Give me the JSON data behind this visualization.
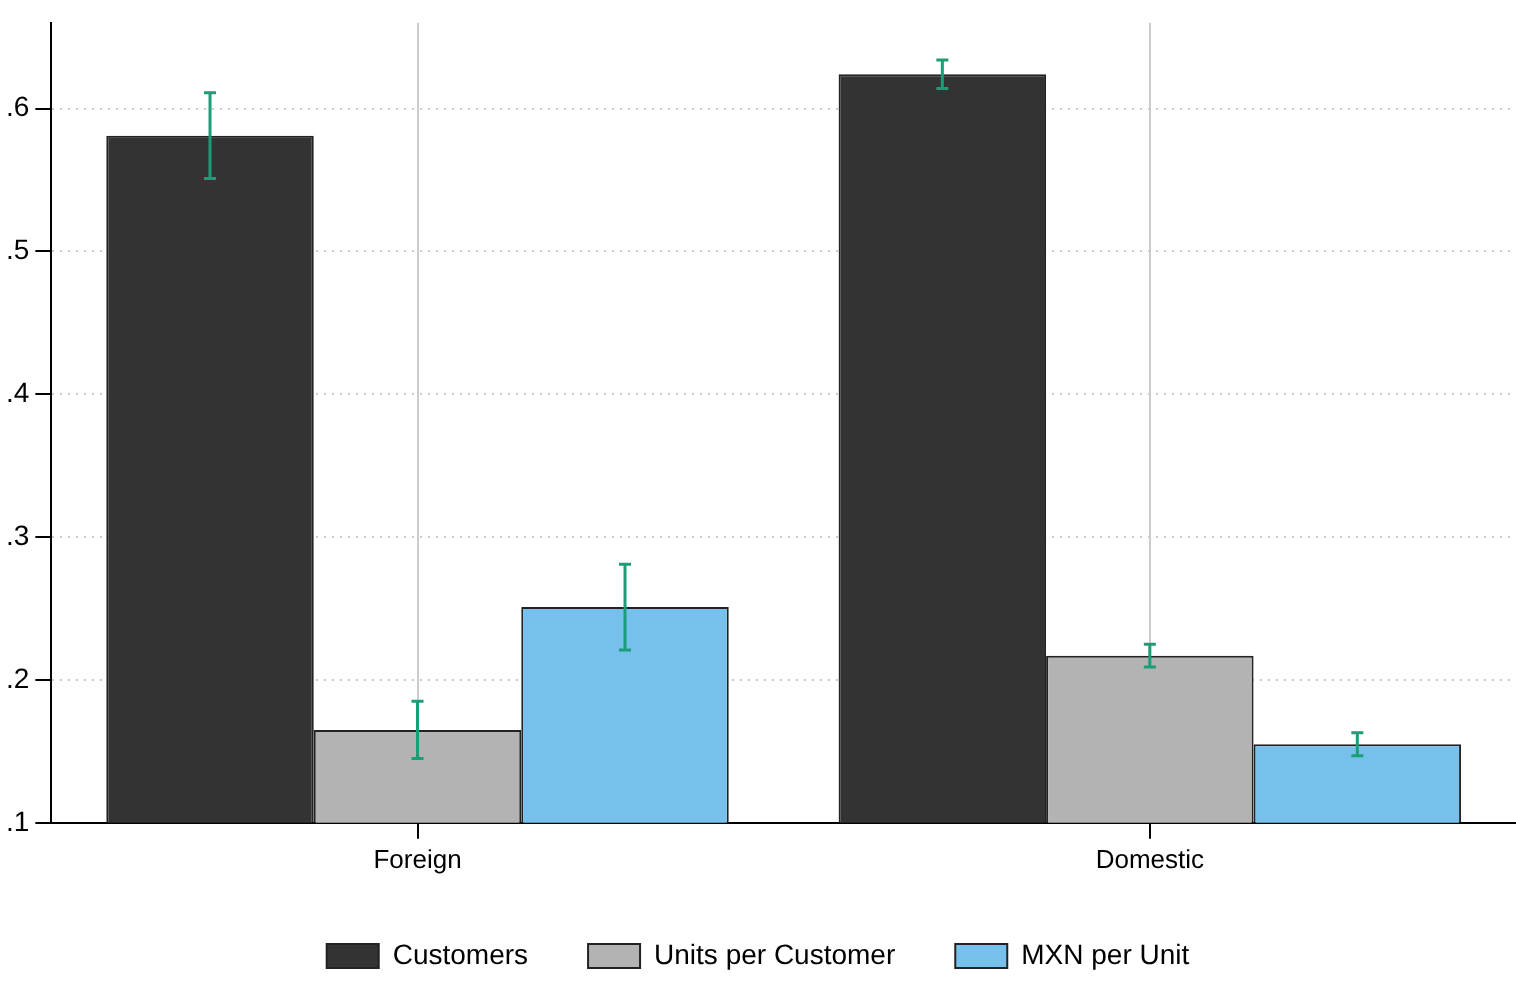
{
  "chart_data": {
    "type": "bar",
    "categories": [
      "Foreign",
      "Domestic"
    ],
    "series": [
      {
        "name": "Customers",
        "color": "#333333",
        "values": [
          0.581,
          0.624
        ],
        "errors": [
          0.03,
          0.01
        ]
      },
      {
        "name": "Units per Customer",
        "color": "#b3b3b3",
        "values": [
          0.165,
          0.217
        ],
        "errors": [
          0.02,
          0.008
        ]
      },
      {
        "name": "MXN per Unit",
        "color": "#75c1ec",
        "values": [
          0.251,
          0.155
        ],
        "errors": [
          0.03,
          0.008
        ]
      }
    ],
    "ylim": [
      0.1,
      0.66
    ],
    "yticks": [
      {
        "value": 0.1,
        "label": ".1"
      },
      {
        "value": 0.2,
        "label": ".2"
      },
      {
        "value": 0.3,
        "label": ".3"
      },
      {
        "value": 0.4,
        "label": ".4"
      },
      {
        "value": 0.5,
        "label": ".5"
      },
      {
        "value": 0.6,
        "label": ".6"
      }
    ],
    "grid": true,
    "legend": "bottom"
  }
}
